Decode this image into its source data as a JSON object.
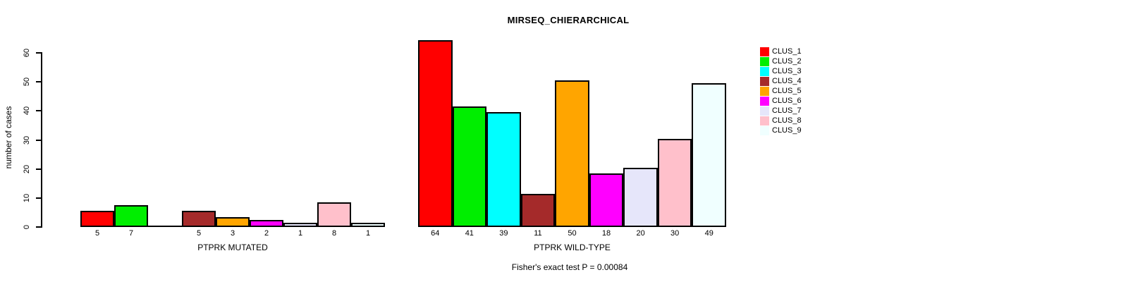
{
  "chart_data": {
    "type": "bar",
    "title": "MIRSEQ_CHIERARCHICAL",
    "ylabel": "number of cases",
    "ylim": [
      0,
      60
    ],
    "yticks": [
      0,
      10,
      20,
      30,
      40,
      50,
      60
    ],
    "grid": false,
    "legend_position": "right",
    "bar_border_color": "#000000",
    "clusters": [
      {
        "name": "CLUS_1",
        "color": "#FF0000"
      },
      {
        "name": "CLUS_2",
        "color": "#00EE00"
      },
      {
        "name": "CLUS_3",
        "color": "#00FFFF"
      },
      {
        "name": "CLUS_4",
        "color": "#A52A2A"
      },
      {
        "name": "CLUS_5",
        "color": "#FFA500"
      },
      {
        "name": "CLUS_6",
        "color": "#FF00FF"
      },
      {
        "name": "CLUS_7",
        "color": "#E6E6FA"
      },
      {
        "name": "CLUS_8",
        "color": "#FFC0CB"
      },
      {
        "name": "CLUS_9",
        "color": "#F0FFFF"
      }
    ],
    "groups": [
      {
        "xlabel": "PTPRK MUTATED",
        "values": [
          5,
          7,
          0,
          5,
          3,
          2,
          1,
          8,
          1
        ]
      },
      {
        "xlabel": "PTPRK WILD-TYPE",
        "values": [
          64,
          41,
          39,
          11,
          50,
          18,
          20,
          30,
          49
        ]
      }
    ],
    "annotation": "Fisher's exact test P = 0.00084"
  }
}
